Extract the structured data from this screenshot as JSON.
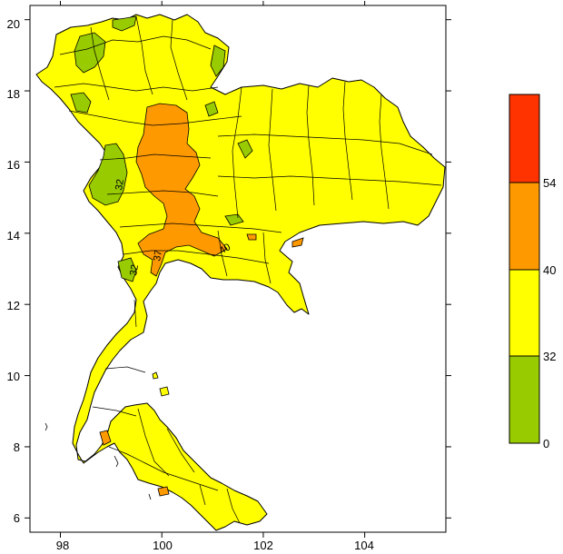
{
  "chart_data": {
    "type": "heatmap",
    "title": "",
    "xlabel": "",
    "ylabel": "",
    "x_ticks": [
      "98",
      "100",
      "102",
      "104"
    ],
    "y_ticks": [
      "6",
      "8",
      "10",
      "12",
      "14",
      "16",
      "18",
      "20"
    ],
    "xlim": [
      97.4,
      105.6
    ],
    "ylim": [
      5.6,
      20.4
    ],
    "legend": {
      "placement": "right",
      "levels": [
        {
          "range": [
            0,
            32
          ],
          "color": "#99cc00"
        },
        {
          "range": [
            32,
            40
          ],
          "color": "#ffff00"
        },
        {
          "range": [
            40,
            54
          ],
          "color": "#ff9900"
        },
        {
          "range": [
            54,
            60
          ],
          "color": "#ff3300"
        }
      ],
      "labels": [
        "0",
        "32",
        "40",
        "54"
      ]
    },
    "contour_labels": [
      "32",
      "32",
      "37",
      "40"
    ],
    "colors": {
      "land_base": "#ffff00",
      "low": "#99cc00",
      "high": "#ff9900",
      "extreme": "#ff3300",
      "border": "#000000"
    }
  }
}
